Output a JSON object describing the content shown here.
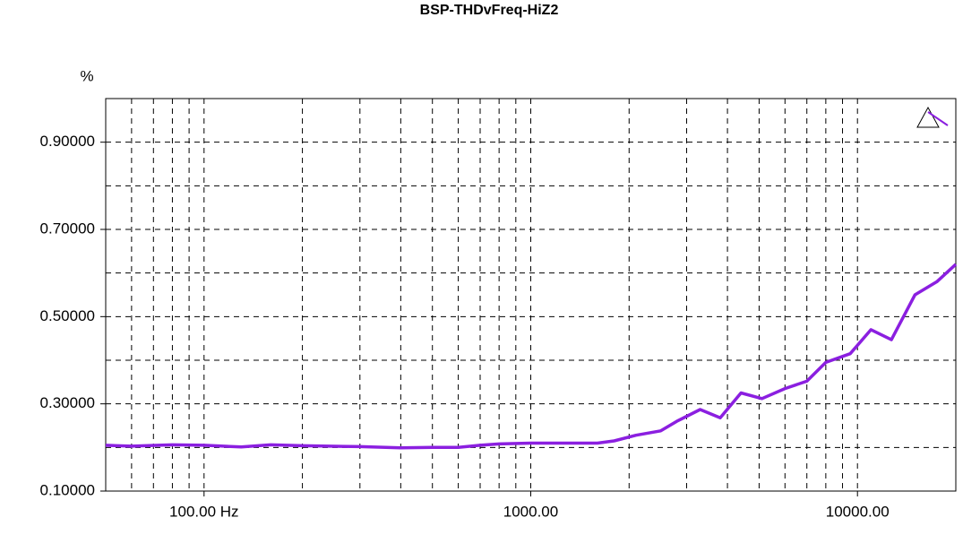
{
  "chart_data": {
    "type": "line",
    "title": "BSP-THDvFreq-HiZ2",
    "y_label": "%",
    "x_log": true,
    "grid": true,
    "xlim": [
      50,
      20000
    ],
    "ylim": [
      0.1,
      1.0
    ],
    "xticks": [
      {
        "value": 100,
        "label": "100.00 Hz"
      },
      {
        "value": 1000,
        "label": "1000.00"
      },
      {
        "value": 10000,
        "label": "10000.00"
      }
    ],
    "x_minor_ticks": [
      60,
      70,
      80,
      90,
      200,
      300,
      400,
      500,
      600,
      700,
      800,
      900,
      2000,
      3000,
      4000,
      5000,
      6000,
      7000,
      8000,
      9000
    ],
    "yticks": [
      {
        "value": 0.1,
        "label": "0.10000"
      },
      {
        "value": 0.3,
        "label": "0.30000"
      },
      {
        "value": 0.5,
        "label": "0.50000"
      },
      {
        "value": 0.7,
        "label": "0.70000"
      },
      {
        "value": 0.9,
        "label": "0.90000"
      }
    ],
    "y_minor_ticks": [
      0.2,
      0.4,
      0.6,
      0.8
    ],
    "x": [
      50,
      60,
      80,
      100,
      130,
      160,
      200,
      300,
      400,
      500,
      600,
      700,
      800,
      1000,
      1200,
      1600,
      1800,
      2100,
      2500,
      2800,
      3300,
      3800,
      4400,
      5100,
      6000,
      7000,
      8000,
      9500,
      11000,
      12700,
      15000,
      17500,
      20000
    ],
    "series": [
      {
        "color": "#8b1fe0",
        "values": [
          0.205,
          0.203,
          0.206,
          0.205,
          0.201,
          0.206,
          0.204,
          0.202,
          0.199,
          0.2,
          0.2,
          0.205,
          0.208,
          0.21,
          0.21,
          0.21,
          0.215,
          0.228,
          0.238,
          0.26,
          0.287,
          0.268,
          0.325,
          0.312,
          0.335,
          0.352,
          0.395,
          0.415,
          0.47,
          0.447,
          0.55,
          0.58,
          0.62
        ]
      }
    ]
  }
}
